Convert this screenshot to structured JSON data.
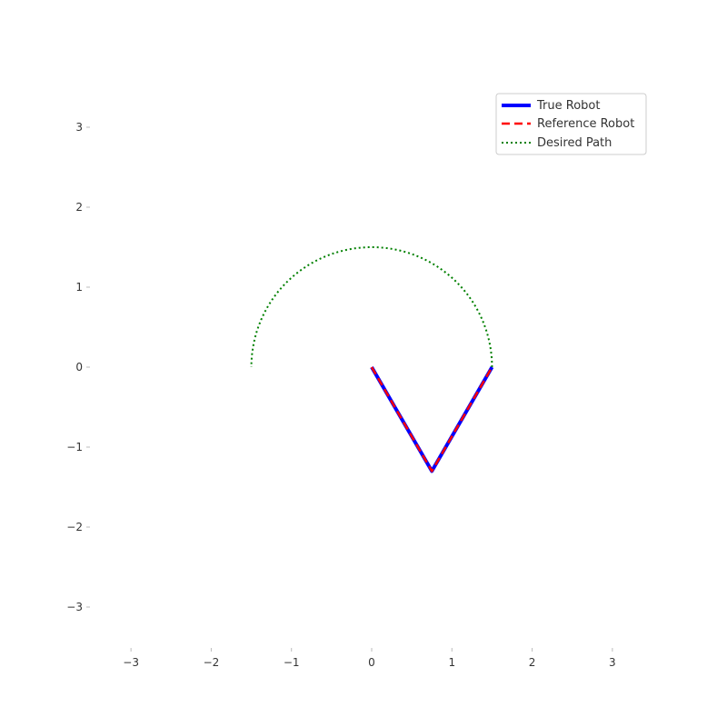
{
  "chart_data": {
    "type": "line",
    "title": "",
    "xlabel": "",
    "ylabel": "",
    "xlim": [
      -3.5,
      3.5
    ],
    "ylim": [
      -3.5,
      3.5
    ],
    "xticks": [
      -3,
      -2,
      -1,
      0,
      1,
      2,
      3
    ],
    "yticks": [
      -3,
      -2,
      -1,
      0,
      1,
      2,
      3
    ],
    "xtick_labels": [
      "−3",
      "−2",
      "−1",
      "0",
      "1",
      "2",
      "3"
    ],
    "ytick_labels": [
      "−3",
      "−2",
      "−1",
      "0",
      "1",
      "2",
      "3"
    ],
    "grid": false,
    "legend_position": "top-right",
    "series": [
      {
        "name": "True Robot",
        "color": "#0000ff",
        "style": "solid",
        "x": [
          0,
          0.75,
          1.5
        ],
        "y": [
          0,
          -1.3,
          0
        ]
      },
      {
        "name": "Reference Robot",
        "color": "#ff0000",
        "style": "dashed",
        "x": [
          0,
          0.75,
          1.5
        ],
        "y": [
          0,
          -1.3,
          0
        ]
      },
      {
        "name": "Desired Path",
        "color": "#008000",
        "style": "dotted",
        "shape": "arc",
        "center": [
          0,
          0
        ],
        "radius": 1.5,
        "angle_start_deg": 0,
        "angle_end_deg": 180
      }
    ]
  }
}
